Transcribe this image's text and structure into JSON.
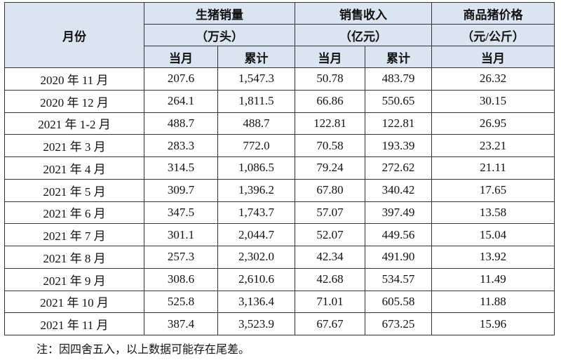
{
  "table": {
    "period": "月份",
    "groups": [
      {
        "title": "生猪销量",
        "unit": "（万头）",
        "columns": [
          "当月",
          "累计"
        ]
      },
      {
        "title": "销售收入",
        "unit": "（亿元）",
        "columns": [
          "当月",
          "累计"
        ]
      },
      {
        "title": "商品猪价格",
        "unit": "（元/公斤）",
        "columns": [
          "当月"
        ]
      }
    ],
    "rows": [
      [
        "2020 年 11 月",
        "207.6",
        "1,547.3",
        "50.78",
        "483.79",
        "26.32"
      ],
      [
        "2020 年 12 月",
        "264.1",
        "1,811.5",
        "66.86",
        "550.65",
        "30.15"
      ],
      [
        "2021 年 1-2 月",
        "488.7",
        "488.7",
        "122.81",
        "122.81",
        "26.95"
      ],
      [
        "2021 年 3 月",
        "283.3",
        "772.0",
        "70.58",
        "193.39",
        "23.21"
      ],
      [
        "2021 年 4 月",
        "314.5",
        "1,086.5",
        "79.24",
        "272.62",
        "21.11"
      ],
      [
        "2021 年 5 月",
        "309.7",
        "1,396.2",
        "67.80",
        "340.42",
        "17.65"
      ],
      [
        "2021 年 6 月",
        "347.5",
        "1,743.7",
        "57.07",
        "397.49",
        "13.58"
      ],
      [
        "2021 年 7 月",
        "301.1",
        "2,044.7",
        "52.07",
        "449.56",
        "15.04"
      ],
      [
        "2021 年 8 月",
        "257.3",
        "2,302.0",
        "42.34",
        "491.90",
        "13.92"
      ],
      [
        "2021 年 9 月",
        "308.6",
        "2,610.6",
        "42.68",
        "534.57",
        "11.49"
      ],
      [
        "2021 年 10 月",
        "525.8",
        "3,136.4",
        "71.01",
        "605.58",
        "11.88"
      ],
      [
        "2021 年 11 月",
        "387.4",
        "3,523.9",
        "67.67",
        "673.25",
        "15.96"
      ]
    ]
  },
  "note": "注：因四舍五入，以上数据可能存在尾差。"
}
